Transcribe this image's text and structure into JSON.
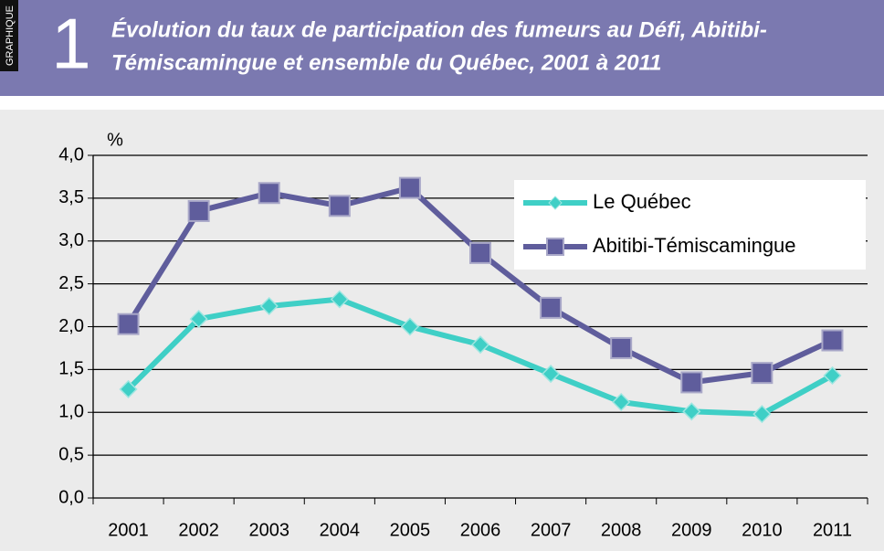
{
  "chart_data": {
    "type": "line",
    "header_label": "GRAPHIQUE",
    "header_number": "1",
    "title": [
      "Évolution du taux de participation des fumeurs au Défi,  Abitibi-",
      "Témiscamingue et ensemble du Québec, 2001 à 2011"
    ],
    "y_label": "%",
    "categories": [
      "2001",
      "2002",
      "2003",
      "2004",
      "2005",
      "2006",
      "2007",
      "2008",
      "2009",
      "2010",
      "2011"
    ],
    "series": [
      {
        "name": "Le Québec",
        "color": "#3fcfc6",
        "marker": "diamond",
        "values": [
          1.27,
          2.09,
          2.24,
          2.32,
          2.0,
          1.79,
          1.45,
          1.12,
          1.01,
          0.98,
          1.43
        ]
      },
      {
        "name": "Abitibi-Témiscamingue",
        "color": "#5f5d9c",
        "marker": "square",
        "values": [
          2.03,
          3.35,
          3.56,
          3.41,
          3.62,
          2.86,
          2.22,
          1.75,
          1.35,
          1.46,
          1.84
        ]
      }
    ],
    "ylim": [
      0,
      4
    ],
    "yticks": [
      {
        "value": 0,
        "label": "0,0"
      },
      {
        "value": 0.5,
        "label": "0,5"
      },
      {
        "value": 1,
        "label": "1,0"
      },
      {
        "value": 1.5,
        "label": "1,5"
      },
      {
        "value": 2,
        "label": "2,0"
      },
      {
        "value": 2.5,
        "label": "2,5"
      },
      {
        "value": 3,
        "label": "3,0"
      },
      {
        "value": 3.5,
        "label": "3,5"
      },
      {
        "value": 4,
        "label": "4,0"
      }
    ],
    "grid": true,
    "legend": "upper right"
  }
}
